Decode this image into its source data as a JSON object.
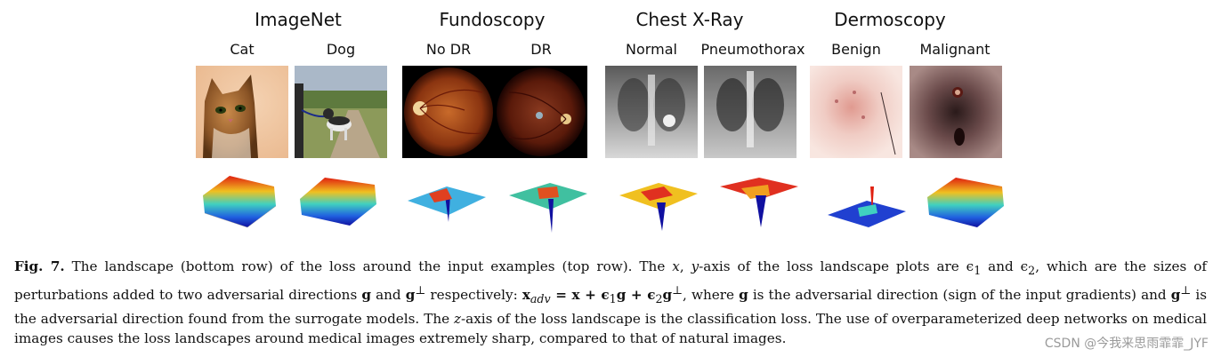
{
  "groups": [
    {
      "title": "ImageNet",
      "labels": [
        "Cat",
        "Dog"
      ]
    },
    {
      "title": "Fundoscopy",
      "labels": [
        "No DR",
        "DR"
      ]
    },
    {
      "title": "Chest X-Ray",
      "labels": [
        "Normal",
        "Pneumothorax"
      ]
    },
    {
      "title": "Dermoscopy",
      "labels": [
        "Benign",
        "Malignant"
      ]
    }
  ],
  "caption": {
    "fig_label": "Fig. 7.",
    "part1": " The landscape (bottom row) of the loss around the input examples (top row). The ",
    "x_var": "x",
    "comma": ", ",
    "y_var": "y",
    "part2": "-axis of the loss landscape plots are ϵ",
    "part3": " and ϵ",
    "part4": ", which are the sizes of perturbations added to two adversarial directions ",
    "g1": "g",
    "and1": " and ",
    "g2": "g",
    "perp": "⊥",
    "part5": " respectively: ",
    "formula": "x",
    "adv": "adv",
    "formula_rest": " = x + ϵ",
    "f_g": "g + ϵ",
    "f_g2": "g",
    "part6": ", where ",
    "g3": "g",
    "part7": " is the adversarial direction (sign of the input gradients) and ",
    "g4": "g",
    "part8": " is the adversarial direction found from the surrogate models. The ",
    "z_var": "z",
    "part9": "-axis of the loss landscape is the classification loss. The use of overparameterized deep networks on medical images causes the loss landscapes around medical images extremely sharp, compared to that of natural images.",
    "sub1": "1",
    "sub2": "2"
  },
  "watermark": "CSDN @今我来思雨霏霏_JYF"
}
